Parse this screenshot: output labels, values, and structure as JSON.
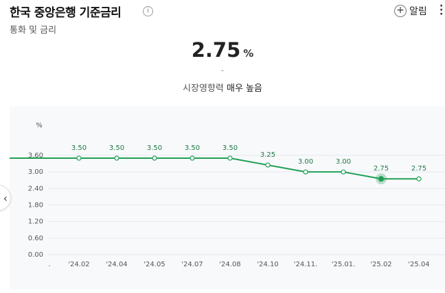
{
  "header": {
    "title": "한국 중앙은행 기준금리",
    "info_icon": "i",
    "subtitle": "통화 및 금리",
    "alarm_label": "알림",
    "alarm_icon": "plus-circle-icon",
    "more_icon": "vertical-dots-icon"
  },
  "summary": {
    "value": "2.75",
    "unit": "%",
    "change": "-",
    "level_prefix": "시장영향력",
    "level_value": "매우 높음"
  },
  "nav": {
    "prev_icon": "chevron-left-icon",
    "prev_glyph": "‹"
  },
  "chart_data": {
    "type": "line",
    "ylabel": "%",
    "ylim": [
      0,
      3.8
    ],
    "yticks": [
      "3.60",
      "3.00",
      "2.40",
      "1.80",
      "1.20",
      "0.60",
      "0.00"
    ],
    "ytick_values": [
      3.6,
      3.0,
      2.4,
      1.8,
      1.2,
      0.6,
      0.0
    ],
    "x_first_tick": ".",
    "categories": [
      "'24.02",
      "'24.04",
      "'24.05",
      "'24.07",
      "'24.08",
      "'24.10",
      "'24.11.",
      "'25.01.",
      "'25.02",
      "'25.04"
    ],
    "values": [
      3.5,
      3.5,
      3.5,
      3.5,
      3.5,
      3.25,
      3.0,
      3.0,
      2.75,
      2.75
    ],
    "labels": [
      "3.50",
      "3.50",
      "3.50",
      "3.50",
      "3.50",
      "3.25",
      "3.00",
      "3.00",
      "2.75",
      "2.75"
    ],
    "highlight_index": 8,
    "line_color": "#20a055",
    "grid": true
  }
}
